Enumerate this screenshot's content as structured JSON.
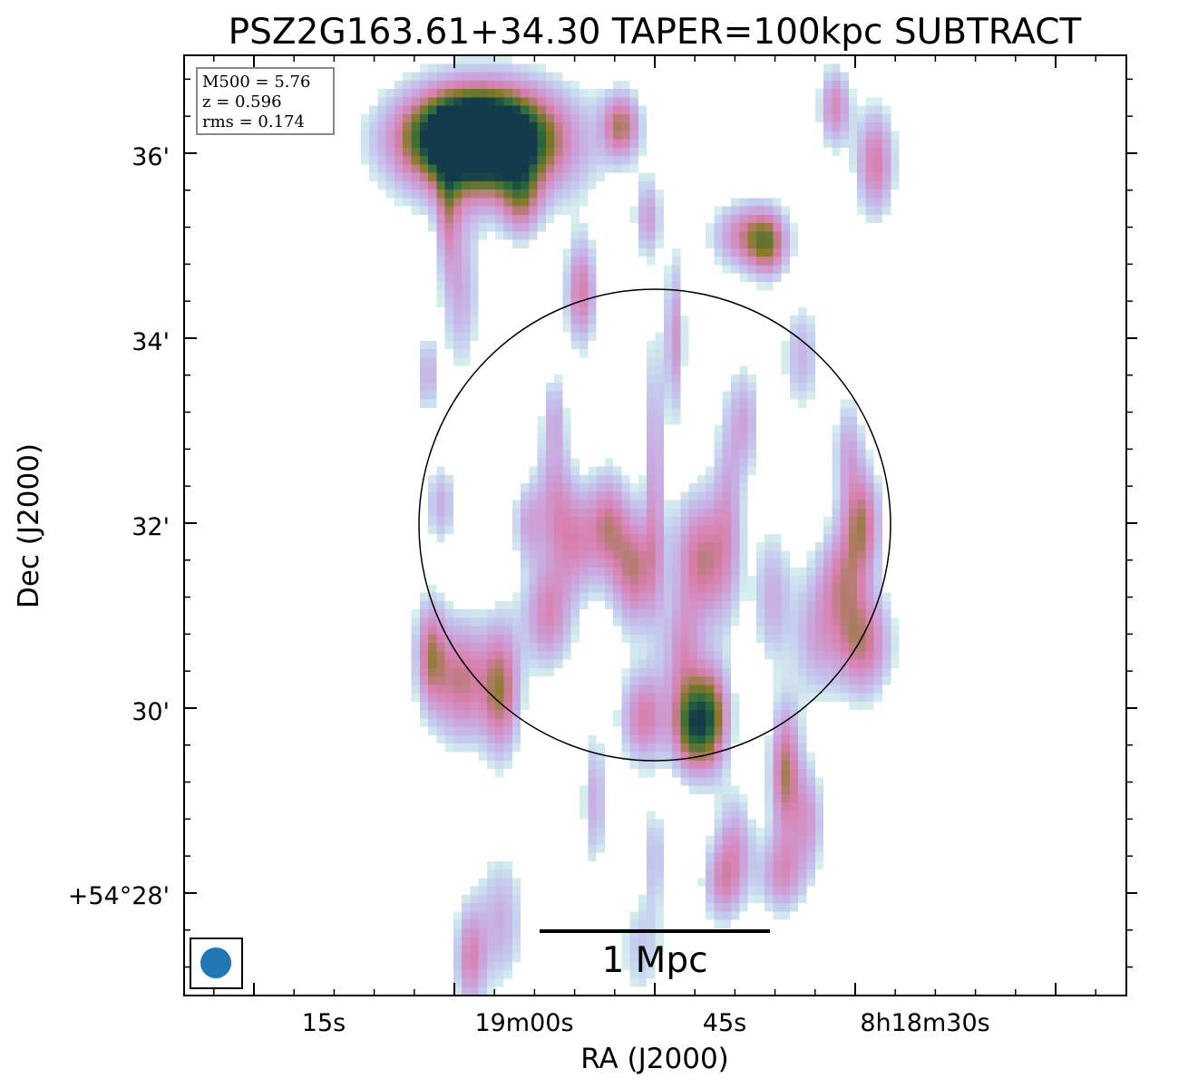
{
  "chart_data": {
    "type": "heatmap",
    "title": "PSZ2G163.61+34.30 TAPER=100kpc SUBTRACT",
    "xlabel": "RA (J2000)",
    "ylabel": "Dec (J2000)",
    "x_ticks": [
      "15s",
      "19m00s",
      "45s",
      "8h18m30s"
    ],
    "y_ticks": [
      "36'",
      "34'",
      "32'",
      "30'",
      "+54°28'"
    ],
    "info_box": [
      "M500 = 5.76",
      "z = 0.596",
      "rms = 0.174"
    ],
    "scalebar_label": "1 Mpc",
    "colormap": [
      "#ffffff",
      "#d6f0ee",
      "#c4cdef",
      "#c9a8e0",
      "#d97fae",
      "#8a7a2a",
      "#2e6e3a",
      "#123a4a"
    ],
    "grid": false,
    "beam": "circular",
    "sources": [
      {
        "ra": -13.6,
        "dec": 36.2,
        "peak": 1.0,
        "sx": 3.2,
        "sy": 0.3
      },
      {
        "ra": -12.5,
        "dec": 36.1,
        "peak": 0.9,
        "sx": 4.5,
        "sy": 0.45
      },
      {
        "ra": -3.5,
        "dec": 32.0,
        "peak": 0.45,
        "sx": 1.0,
        "sy": 0.4
      },
      {
        "ra": -1.5,
        "dec": 31.5,
        "peak": 0.55,
        "sx": 1.2,
        "sy": 0.45
      },
      {
        "ra": 3.5,
        "dec": 31.6,
        "peak": 0.55,
        "sx": 1.5,
        "sy": 0.5
      },
      {
        "ra": -5.8,
        "dec": 31.8,
        "peak": 0.4,
        "sx": 1.2,
        "sy": 0.4
      },
      {
        "ra": -8.0,
        "dec": 31.0,
        "peak": 0.45,
        "sx": 1.3,
        "sy": 0.4
      },
      {
        "ra": -7.5,
        "dec": 32.3,
        "peak": 0.35,
        "sx": 1.0,
        "sy": 0.5
      },
      {
        "ra": 0.0,
        "dec": 32.6,
        "peak": 0.35,
        "sx": 0.5,
        "sy": 1.0
      },
      {
        "ra": 2.0,
        "dec": 30.6,
        "peak": 0.35,
        "sx": 1.0,
        "sy": 0.4
      },
      {
        "ra": 2.6,
        "dec": 29.8,
        "peak": 0.68,
        "sx": 1.0,
        "sy": 0.35
      },
      {
        "ra": 4.2,
        "dec": 29.9,
        "peak": 0.72,
        "sx": 1.0,
        "sy": 0.4
      },
      {
        "ra": -0.8,
        "dec": 29.9,
        "peak": 0.5,
        "sx": 1.2,
        "sy": 0.35
      },
      {
        "ra": 9.8,
        "dec": 29.3,
        "peak": 0.6,
        "sx": 0.8,
        "sy": 0.5
      },
      {
        "ra": 15.5,
        "dec": 30.7,
        "peak": 0.55,
        "sx": 1.5,
        "sy": 0.4
      },
      {
        "ra": 15.5,
        "dec": 32.0,
        "peak": 0.55,
        "sx": 1.0,
        "sy": 0.4
      },
      {
        "ra": 14.0,
        "dec": 31.4,
        "peak": 0.4,
        "sx": 1.2,
        "sy": 0.4
      },
      {
        "ra": -14.5,
        "dec": 30.3,
        "peak": 0.55,
        "sx": 1.5,
        "sy": 0.45
      },
      {
        "ra": -11.5,
        "dec": 30.2,
        "peak": 0.58,
        "sx": 1.0,
        "sy": 0.5
      },
      {
        "ra": -16.8,
        "dec": 30.6,
        "peak": 0.5,
        "sx": 0.8,
        "sy": 0.4
      },
      {
        "ra": 7.0,
        "dec": 35.1,
        "peak": 0.5,
        "sx": 1.8,
        "sy": 0.25
      },
      {
        "ra": 8.5,
        "dec": 35.0,
        "peak": 0.42,
        "sx": 1.0,
        "sy": 0.25
      },
      {
        "ra": -5.5,
        "dec": 34.5,
        "peak": 0.5,
        "sx": 0.8,
        "sy": 0.4
      },
      {
        "ra": -2.5,
        "dec": 36.3,
        "peak": 0.55,
        "sx": 1.0,
        "sy": 0.25
      },
      {
        "ra": 1.5,
        "dec": 34.0,
        "peak": 0.4,
        "sx": 0.5,
        "sy": 0.6
      },
      {
        "ra": 13.5,
        "dec": 36.5,
        "peak": 0.45,
        "sx": 0.8,
        "sy": 0.3
      },
      {
        "ra": 16.5,
        "dec": 35.9,
        "peak": 0.5,
        "sx": 1.0,
        "sy": 0.4
      },
      {
        "ra": -10.0,
        "dec": 35.5,
        "peak": 0.4,
        "sx": 1.0,
        "sy": 0.3
      },
      {
        "ra": -15.5,
        "dec": 35.4,
        "peak": 0.35,
        "sx": 0.6,
        "sy": 0.5
      },
      {
        "ra": -13.8,
        "dec": 27.3,
        "peak": 0.45,
        "sx": 0.8,
        "sy": 0.4
      },
      {
        "ra": -11.5,
        "dec": 27.7,
        "peak": 0.3,
        "sx": 1.2,
        "sy": 0.5
      },
      {
        "ra": -14.5,
        "dec": 34.5,
        "peak": 0.3,
        "sx": 1.0,
        "sy": 0.6
      },
      {
        "ra": 6.0,
        "dec": 28.5,
        "peak": 0.35,
        "sx": 1.0,
        "sy": 0.4
      },
      {
        "ra": 11.5,
        "dec": 28.8,
        "peak": 0.35,
        "sx": 0.8,
        "sy": 0.4
      },
      {
        "ra": 9.5,
        "dec": 28.2,
        "peak": 0.4,
        "sx": 1.2,
        "sy": 0.3
      },
      {
        "ra": 5.0,
        "dec": 28.1,
        "peak": 0.35,
        "sx": 1.0,
        "sy": 0.3
      },
      {
        "ra": 12.0,
        "dec": 30.8,
        "peak": 0.3,
        "sx": 1.2,
        "sy": 0.5
      },
      {
        "ra": 8.8,
        "dec": 31.2,
        "peak": 0.3,
        "sx": 1.0,
        "sy": 0.5
      },
      {
        "ra": 5.5,
        "dec": 32.2,
        "peak": 0.28,
        "sx": 0.8,
        "sy": 0.8
      },
      {
        "ra": -9.5,
        "dec": 32.0,
        "peak": 0.3,
        "sx": 0.8,
        "sy": 0.3
      },
      {
        "ra": 11.0,
        "dec": 33.8,
        "peak": 0.28,
        "sx": 1.0,
        "sy": 0.4
      },
      {
        "ra": 14.5,
        "dec": 32.8,
        "peak": 0.3,
        "sx": 0.8,
        "sy": 0.4
      },
      {
        "ra": -17.0,
        "dec": 33.6,
        "peak": 0.3,
        "sx": 0.6,
        "sy": 0.3
      },
      {
        "ra": -16.0,
        "dec": 32.2,
        "peak": 0.3,
        "sx": 0.8,
        "sy": 0.3
      },
      {
        "ra": -4.5,
        "dec": 29.0,
        "peak": 0.32,
        "sx": 0.6,
        "sy": 0.5
      },
      {
        "ra": 0.0,
        "dec": 28.4,
        "peak": 0.25,
        "sx": 0.6,
        "sy": 0.4
      },
      {
        "ra": -7.5,
        "dec": 33.2,
        "peak": 0.25,
        "sx": 0.6,
        "sy": 0.3
      },
      {
        "ra": 6.8,
        "dec": 33.1,
        "peak": 0.3,
        "sx": 0.8,
        "sy": 0.4
      },
      {
        "ra": -0.5,
        "dec": 35.3,
        "peak": 0.35,
        "sx": 0.7,
        "sy": 0.3
      },
      {
        "ra": -1.0,
        "dec": 27.4,
        "peak": 0.22,
        "sx": 1.2,
        "sy": 0.4
      }
    ]
  }
}
